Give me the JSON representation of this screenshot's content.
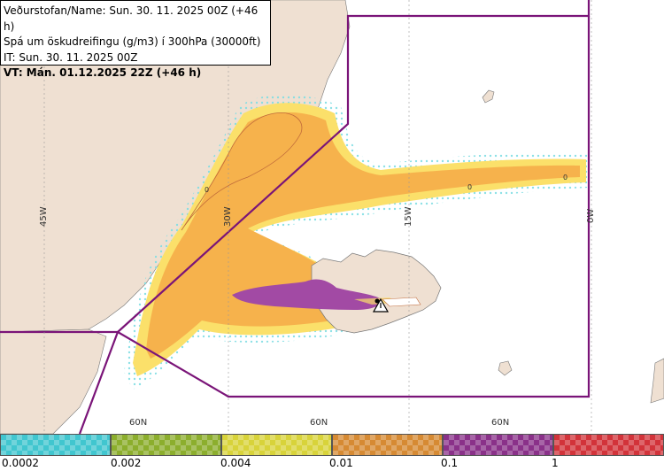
{
  "header": {
    "line1": "Veðurstofan/Name: Sun. 30. 11. 2025 00Z (+46 h)",
    "line2": "Spá um öskudreifingu (g/m3) í 300hPa (30000ft)",
    "line3": "IT: Sun. 30. 11. 2025 00Z",
    "line4": "VT: Mán. 01.12.2025 22Z (+46 h)"
  },
  "map": {
    "graticule": {
      "lon_labels": [
        "45W",
        "30W",
        "15W",
        "0W"
      ],
      "lat_labels": [
        "60N",
        "60N",
        "60N"
      ]
    },
    "contour_labels": [
      "0",
      "0",
      "0"
    ],
    "volcano_icon": "warning-triangle-icon",
    "colors": {
      "land": "#efe0d2",
      "sea": "#ffffff",
      "boundary": "#7a1478",
      "ash_low": "#f6b24c",
      "ash_mid": "#fbe06a",
      "ash_fringe": "#8fe3e6",
      "ash_high": "#a24aa4"
    }
  },
  "legend": {
    "labels": [
      "0.0002",
      "0.002",
      "0.004",
      "0.01",
      "0.1",
      "1"
    ],
    "colors": [
      "#41c6cf",
      "#8cae2d",
      "#d8d33a",
      "#d68a33",
      "#8a3189",
      "#d2333a"
    ]
  }
}
